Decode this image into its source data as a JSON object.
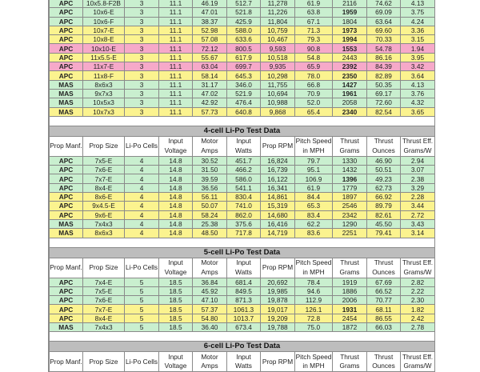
{
  "columns": [
    "Prop Manf.",
    "Prop Size",
    "Li-Po Cells",
    "Input Voltage",
    "Motor Amps",
    "Input Watts",
    "Prop RPM",
    "Pitch Speed in MPH",
    "Thrust Grams",
    "Thrust Ounces",
    "Thrust Eff. Grams/W"
  ],
  "colors": {
    "green": "#c9efcf",
    "yellow": "#fbf38f",
    "pink": "#f6a9c9",
    "band": "#bdbdbd"
  },
  "sections": [
    {
      "title": "",
      "rows": [
        {
          "c": "g",
          "bold": false,
          "v": [
            "APC",
            "10x5.8-F2B",
            "3",
            "11.1",
            "46.19",
            "512.7",
            "11,278",
            "61.9",
            "2116",
            "74.62",
            "4.13"
          ]
        },
        {
          "c": "g",
          "bold": true,
          "v": [
            "APC",
            "10x6-E",
            "3",
            "11.1",
            "47.01",
            "521.8",
            "11,226",
            "63.8",
            "1959",
            "69.09",
            "3.75"
          ]
        },
        {
          "c": "g",
          "bold": false,
          "v": [
            "APC",
            "10x6-F",
            "3",
            "11.1",
            "38.37",
            "425.9",
            "11,804",
            "67.1",
            "1804",
            "63.64",
            "4.24"
          ]
        },
        {
          "c": "y",
          "bold": true,
          "v": [
            "APC",
            "10x7-E",
            "3",
            "11.1",
            "52.98",
            "588.0",
            "10,759",
            "71.3",
            "1973",
            "69.60",
            "3.36"
          ]
        },
        {
          "c": "y",
          "bold": true,
          "v": [
            "APC",
            "10x8-E",
            "3",
            "11.1",
            "57.08",
            "633.6",
            "10,467",
            "79.3",
            "1994",
            "70.33",
            "3.15"
          ]
        },
        {
          "c": "p",
          "bold": true,
          "v": [
            "APC",
            "10x10-E",
            "3",
            "11.1",
            "72.12",
            "800.5",
            "9,593",
            "90.8",
            "1553",
            "54.78",
            "1.94"
          ]
        },
        {
          "c": "y",
          "bold": false,
          "v": [
            "APC",
            "11x5.5-E",
            "3",
            "11.1",
            "55.67",
            "617.9",
            "10,518",
            "54.8",
            "2443",
            "86.16",
            "3.95"
          ]
        },
        {
          "c": "p",
          "bold": true,
          "v": [
            "APC",
            "11x7-E",
            "3",
            "11.1",
            "63.04",
            "699.7",
            "9,935",
            "65.9",
            "2392",
            "84.39",
            "3.42"
          ]
        },
        {
          "c": "y",
          "bold": true,
          "v": [
            "APC",
            "11x8-F",
            "3",
            "11.1",
            "58.14",
            "645.3",
            "10,298",
            "78.0",
            "2350",
            "82.89",
            "3.64"
          ]
        },
        {
          "c": "g",
          "bold": true,
          "v": [
            "MAS",
            "8x6x3",
            "3",
            "11.1",
            "31.17",
            "346.0",
            "11,755",
            "66.8",
            "1427",
            "50.35",
            "4.13"
          ]
        },
        {
          "c": "g",
          "bold": true,
          "v": [
            "MAS",
            "9x7x3",
            "3",
            "11.1",
            "47.02",
            "521.9",
            "10,694",
            "70.9",
            "1961",
            "69.17",
            "3.76"
          ]
        },
        {
          "c": "g",
          "bold": false,
          "v": [
            "MAS",
            "10x5x3",
            "3",
            "11.1",
            "42.92",
            "476.4",
            "10,988",
            "52.0",
            "2058",
            "72.60",
            "4.32"
          ]
        },
        {
          "c": "y",
          "bold": true,
          "v": [
            "MAS",
            "10x7x3",
            "3",
            "11.1",
            "57.73",
            "640.8",
            "9,868",
            "65.4",
            "2340",
            "82.54",
            "3.65"
          ]
        }
      ]
    },
    {
      "title": "4-cell Li-Po Test Data",
      "rows": [
        {
          "c": "g",
          "bold": false,
          "v": [
            "APC",
            "7x5-E",
            "4",
            "14.8",
            "30.52",
            "451.7",
            "16,824",
            "79.7",
            "1330",
            "46.90",
            "2.94"
          ]
        },
        {
          "c": "g",
          "bold": false,
          "v": [
            "APC",
            "7x6-E",
            "4",
            "14.8",
            "31.50",
            "466.2",
            "16,739",
            "95.1",
            "1432",
            "50.51",
            "3.07"
          ]
        },
        {
          "c": "g",
          "bold": true,
          "v": [
            "APC",
            "7x7-E",
            "4",
            "14.8",
            "39.59",
            "586.0",
            "16,122",
            "106.9",
            "1396",
            "49.23",
            "2.38"
          ]
        },
        {
          "c": "g",
          "bold": false,
          "v": [
            "APC",
            "8x4-E",
            "4",
            "14.8",
            "36.56",
            "541.1",
            "16,341",
            "61.9",
            "1779",
            "62.73",
            "3.29"
          ]
        },
        {
          "c": "y",
          "bold": false,
          "v": [
            "APC",
            "8x6-E",
            "4",
            "14.8",
            "56.11",
            "830.4",
            "14,861",
            "84.4",
            "1897",
            "66.92",
            "2.28"
          ]
        },
        {
          "c": "y",
          "bold": false,
          "v": [
            "APC",
            "9x4.5-E",
            "4",
            "14.8",
            "50.07",
            "741.0",
            "15,319",
            "65.3",
            "2546",
            "89.79",
            "3.44"
          ]
        },
        {
          "c": "y",
          "bold": false,
          "v": [
            "APC",
            "9x6-E",
            "4",
            "14.8",
            "58.24",
            "862.0",
            "14,680",
            "83.4",
            "2342",
            "82.61",
            "2.72"
          ]
        },
        {
          "c": "g",
          "bold": false,
          "v": [
            "MAS",
            "7x4x3",
            "4",
            "14.8",
            "25.38",
            "375.6",
            "16,416",
            "62.2",
            "1290",
            "45.50",
            "3.43"
          ]
        },
        {
          "c": "y",
          "bold": false,
          "v": [
            "MAS",
            "8x6x3",
            "4",
            "14.8",
            "48.50",
            "717.8",
            "14,719",
            "83.6",
            "2251",
            "79.41",
            "3.14"
          ]
        }
      ]
    },
    {
      "title": "5-cell Li-Po Test Data",
      "rows": [
        {
          "c": "g",
          "bold": false,
          "v": [
            "APC",
            "7x4-E",
            "5",
            "18.5",
            "36.84",
            "681.4",
            "20,692",
            "78.4",
            "1919",
            "67.69",
            "2.82"
          ]
        },
        {
          "c": "g",
          "bold": false,
          "v": [
            "APC",
            "7x5-E",
            "5",
            "18.5",
            "45.92",
            "849.5",
            "19,985",
            "94.6",
            "1886",
            "66.52",
            "2.22"
          ]
        },
        {
          "c": "g",
          "bold": false,
          "v": [
            "APC",
            "7x6-E",
            "5",
            "18.5",
            "47.10",
            "871.3",
            "19,878",
            "112.9",
            "2006",
            "70.77",
            "2.30"
          ]
        },
        {
          "c": "y",
          "bold": true,
          "v": [
            "APC",
            "7x7-E",
            "5",
            "18.5",
            "57.37",
            "1061.3",
            "19,017",
            "126.1",
            "1931",
            "68.11",
            "1.82"
          ]
        },
        {
          "c": "y",
          "bold": false,
          "v": [
            "APC",
            "8x4-E",
            "5",
            "18.5",
            "54.80",
            "1013.7",
            "19,209",
            "72.8",
            "2454",
            "86.55",
            "2.42"
          ]
        },
        {
          "c": "g",
          "bold": false,
          "v": [
            "MAS",
            "7x4x3",
            "5",
            "18.5",
            "36.40",
            "673.4",
            "19,788",
            "75.0",
            "1872",
            "66.03",
            "2.78"
          ]
        }
      ]
    },
    {
      "title": "6-cell Li-Po Test Data",
      "rows": []
    }
  ]
}
